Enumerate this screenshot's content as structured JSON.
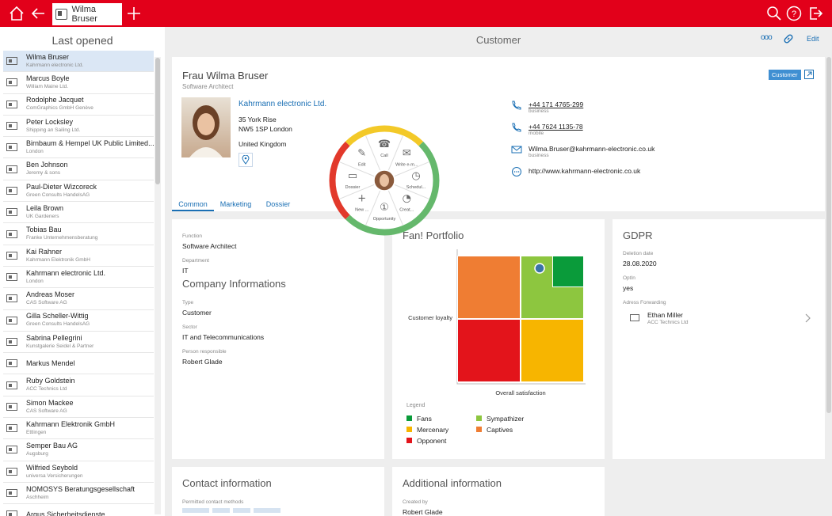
{
  "topbar": {
    "active_tab": "Wilma Bruser"
  },
  "sidebar": {
    "title": "Last opened",
    "items": [
      {
        "name": "Wilma Bruser",
        "sub": "Kahrmann electronic Ltd."
      },
      {
        "name": "Marcus Boyle",
        "sub": "William Maine Ltd."
      },
      {
        "name": "Rodolphe Jacquet",
        "sub": "ComGraphics GmbH Genève"
      },
      {
        "name": "Peter Locksley",
        "sub": "Shipping an Sailing Ltd."
      },
      {
        "name": "Birnbaum & Hempel UK Public Limited...",
        "sub": "London"
      },
      {
        "name": "Ben Johnson",
        "sub": "Jeremy & sons"
      },
      {
        "name": "Paul-Dieter Wizcoreck",
        "sub": "Green Consults HandelsAG"
      },
      {
        "name": "Leila Brown",
        "sub": "UK Gardeners"
      },
      {
        "name": "Tobias Bau",
        "sub": "Franke Unternehmensberatung"
      },
      {
        "name": "Kai Rahner",
        "sub": "Kahrmann Elektronik GmbH"
      },
      {
        "name": "Kahrmann electronic Ltd.",
        "sub": "London"
      },
      {
        "name": "Andreas Moser",
        "sub": "CAS Software AG"
      },
      {
        "name": "Gilla Scheller-Wittig",
        "sub": "Green Consults HandelsAG"
      },
      {
        "name": "Sabrina Pellegrini",
        "sub": "Kunstgalerie Seidel & Partner"
      },
      {
        "name": "Markus Mendel",
        "sub": ""
      },
      {
        "name": "Ruby Goldstein",
        "sub": "ACC Technics Ltd"
      },
      {
        "name": "Simon Mackee",
        "sub": "CAS Software AG"
      },
      {
        "name": "Kahrmann Elektronik GmbH",
        "sub": "Ettlingen"
      },
      {
        "name": "Semper Bau AG",
        "sub": "Augsburg"
      },
      {
        "name": "Wilfried Seybold",
        "sub": "universa Versicherungen"
      },
      {
        "name": "NOMOSYS Beratungsgesellschaft",
        "sub": "Aschheim"
      },
      {
        "name": "Argus Sicherheitsdienste",
        "sub": ""
      }
    ]
  },
  "main": {
    "title": "Customer",
    "more_label": "ooo",
    "edit_label": "Edit"
  },
  "profile": {
    "name": "Frau Wilma Bruser",
    "role": "Software Architect",
    "badge": "Customer",
    "company": "Kahrmann electronic Ltd.",
    "address1": "35 York Rise",
    "address2": "NW5 1SP London",
    "country": "United Kingdom",
    "phone1": "+44 171 4765-299",
    "phone1_type": "business",
    "phone2": "+44 7624 1135-78",
    "phone2_type": "mobile",
    "email": "Wilma.Bruser@kahrmann-electronic.co.uk",
    "email_type": "business",
    "web": "http://www.kahrmann-electronic.co.uk",
    "tabs": [
      "Common",
      "Marketing",
      "Dossier"
    ]
  },
  "radial_menu": {
    "items": [
      "Call",
      "Write e-m...",
      "Schedul...",
      "Creat...",
      "Opportunity",
      "New ...",
      "Dossier",
      "Edit"
    ],
    "opportunity_count": "1"
  },
  "common_card": {
    "function_label": "Function",
    "function_value": "Software Architect",
    "department_label": "Department",
    "department_value": "IT",
    "company_info_title": "Company Informations",
    "type_label": "Type",
    "type_value": "Customer",
    "sector_label": "Sector",
    "sector_value": "IT and Telecommunications",
    "person_label": "Person responsible",
    "person_value": "Robert Glade"
  },
  "portfolio_card": {
    "title": "Fan! Portfolio",
    "legend_title": "Legend"
  },
  "chart_data": {
    "type": "heatmap",
    "title": "Fan! Portfolio",
    "xlabel": "Overall satisfaction",
    "ylabel": "Customer loyalty",
    "legend": [
      {
        "name": "Fans",
        "color": "#0a9b3a"
      },
      {
        "name": "Sympathizer",
        "color": "#8dc63f"
      },
      {
        "name": "Mercenary",
        "color": "#f7b500"
      },
      {
        "name": "Captives",
        "color": "#ef7d33"
      },
      {
        "name": "Opponent",
        "color": "#e3141b"
      }
    ],
    "quadrants": [
      {
        "name": "Captives",
        "x": [
          0,
          0.5
        ],
        "y": [
          0.5,
          1
        ],
        "color": "#ef7d33"
      },
      {
        "name": "Sympathizer",
        "x": [
          0.5,
          1
        ],
        "y": [
          0.5,
          1
        ],
        "color": "#8dc63f"
      },
      {
        "name": "Fans",
        "x": [
          0.75,
          1
        ],
        "y": [
          0.75,
          1
        ],
        "color": "#0a9b3a"
      },
      {
        "name": "Opponent",
        "x": [
          0,
          0.5
        ],
        "y": [
          0,
          0.5
        ],
        "color": "#e3141b"
      },
      {
        "name": "Mercenary",
        "x": [
          0.5,
          1
        ],
        "y": [
          0,
          0.5
        ],
        "color": "#f7b500"
      }
    ],
    "point": {
      "x": 0.65,
      "y": 0.9
    }
  },
  "gdpr_card": {
    "title": "GDPR",
    "deletion_label": "Deletion date",
    "deletion_value": "28.08.2020",
    "optin_label": "OptIn",
    "optin_value": "yes",
    "forwarding_label": "Adress Forwarding",
    "forwarding_name": "Ethan Miller",
    "forwarding_sub": "ACC Technics Ltd"
  },
  "contact_card": {
    "title": "Contact information",
    "permitted_label": "Permitted contact methods"
  },
  "additional_card": {
    "title": "Additional information",
    "created_label": "Created by",
    "created_value": "Robert Glade"
  }
}
